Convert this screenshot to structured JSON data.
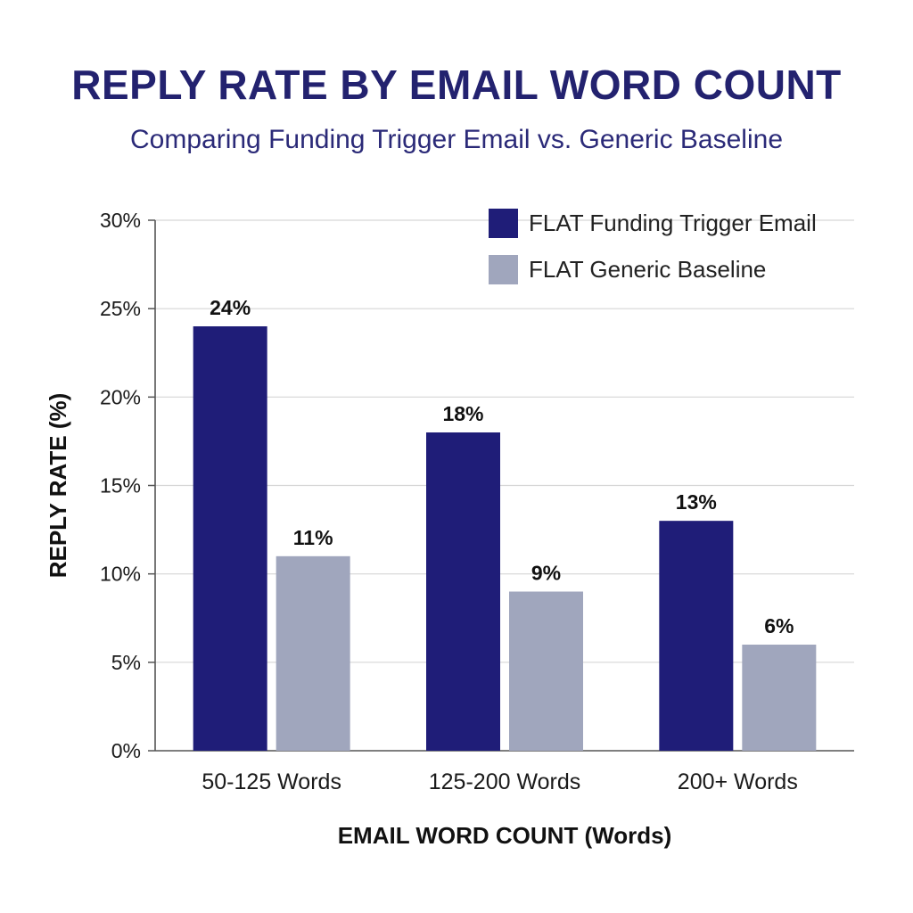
{
  "chart_data": {
    "type": "bar",
    "title": "REPLY RATE BY EMAIL WORD COUNT",
    "subtitle": "Comparing Funding Trigger Email vs. Generic Baseline",
    "xlabel": "EMAIL WORD COUNT (Words)",
    "ylabel": "REPLY RATE (%)",
    "categories": [
      "50-125 Words",
      "125-200 Words",
      "200+ Words"
    ],
    "series": [
      {
        "name": "FLAT Funding Trigger Email",
        "color": "#1f1d78",
        "values": [
          24,
          18,
          13
        ],
        "labels": [
          "24%",
          "18%",
          "13%"
        ]
      },
      {
        "name": "FLAT Generic Baseline",
        "color": "#a0a6bd",
        "values": [
          11,
          9,
          6
        ],
        "labels": [
          "11%",
          "9%",
          "6%"
        ]
      }
    ],
    "ylim": [
      0,
      30
    ],
    "yticks": [
      0,
      5,
      10,
      15,
      20,
      25,
      30
    ],
    "ytick_labels": [
      "0%",
      "5%",
      "10%",
      "15%",
      "20%",
      "25%",
      "30%"
    ],
    "grid": true,
    "legend_position": "top-right"
  }
}
